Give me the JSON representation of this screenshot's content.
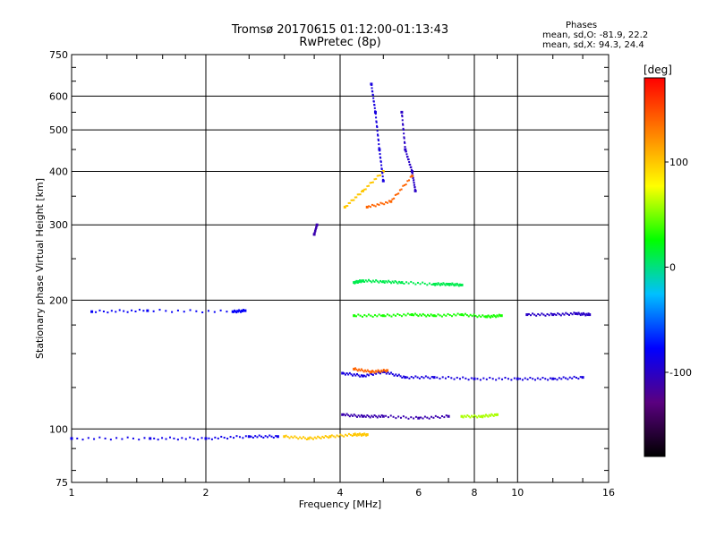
{
  "chart_data": {
    "type": "scatter",
    "title": "Tromsø 20170615 01:12:00-01:13:43",
    "subtitle": "RwPretec (8p)",
    "xlabel": "Frequency [MHz]",
    "ylabel": "Stationary phase Virtual Height [km]",
    "x_scale": "log",
    "y_scale": "log",
    "xlim": [
      1,
      16
    ],
    "ylim": [
      75,
      750
    ],
    "x_ticks": [
      1,
      2,
      4,
      6,
      8,
      10,
      16
    ],
    "x_gridlines": [
      2,
      4,
      8,
      10
    ],
    "y_ticks": [
      75,
      100,
      200,
      300,
      400,
      500,
      600,
      750
    ],
    "y_gridlines": [
      100,
      200,
      300,
      400,
      500,
      600
    ],
    "stats_header": "Phases",
    "stats_lines": [
      "mean, sd,O: -81.9, 22.2",
      "mean, sd,X:  94.3, 24.4"
    ],
    "colorbar": {
      "label": "[deg]",
      "range": [
        -180,
        180
      ],
      "ticks": [
        100,
        0,
        -100
      ],
      "colors": [
        "#000000",
        "#5a0080",
        "#0000ff",
        "#00c0ff",
        "#00ff00",
        "#ffff00",
        "#ff8000",
        "#ff0000"
      ]
    },
    "series": [
      {
        "x": [
          1.0,
          1.5,
          2.0,
          2.5,
          2.9
        ],
        "y": [
          95,
          95,
          95,
          96,
          96
        ],
        "phase": -85
      },
      {
        "x": [
          3.0,
          3.4,
          3.8,
          4.3,
          4.6
        ],
        "y": [
          96,
          95,
          96,
          97,
          97
        ],
        "phase": 100
      },
      {
        "x": [
          1.11,
          1.48,
          2.3,
          2.45
        ],
        "y": [
          188,
          189,
          188,
          189
        ],
        "phase": -80
      },
      {
        "x": [
          4.05,
          4.5,
          5.0,
          6.0,
          7.0
        ],
        "y": [
          108,
          107,
          107,
          106,
          107
        ],
        "phase": -110
      },
      {
        "x": [
          7.5,
          8.3,
          9.0
        ],
        "y": [
          107,
          107,
          108
        ],
        "phase": 60
      },
      {
        "x": [
          4.05,
          4.5,
          5.0,
          5.6,
          6.5,
          8.0,
          10.0,
          12.0,
          14.0
        ],
        "y": [
          135,
          133,
          136,
          132,
          132,
          131,
          131,
          131,
          132
        ],
        "phase": -90
      },
      {
        "x": [
          4.3,
          4.7,
          5.1
        ],
        "y": [
          138,
          136,
          137
        ],
        "phase": 140
      },
      {
        "x": [
          4.3,
          5.0,
          5.8,
          6.5,
          7.5,
          8.5,
          9.2
        ],
        "y": [
          184,
          184,
          185,
          184,
          185,
          183,
          184
        ],
        "phase": 30
      },
      {
        "x": [
          10.5,
          12.0,
          13.5,
          14.5
        ],
        "y": [
          185,
          185,
          186,
          185
        ],
        "phase": -100
      },
      {
        "x": [
          4.3,
          4.5,
          5.0,
          5.5,
          6.5,
          7.0,
          7.5
        ],
        "y": [
          220,
          222,
          221,
          220,
          218,
          218,
          217
        ],
        "phase": 10
      },
      {
        "x": [
          4.1,
          4.5,
          5.0
        ],
        "y": [
          330,
          360,
          400
        ],
        "phase": 100
      },
      {
        "x": [
          4.7,
          4.8,
          4.9,
          5.0
        ],
        "y": [
          640,
          550,
          450,
          380
        ],
        "phase": -90
      },
      {
        "x": [
          5.5,
          5.6,
          5.8,
          5.9
        ],
        "y": [
          550,
          450,
          400,
          360
        ],
        "phase": -100
      },
      {
        "x": [
          4.6,
          5.2,
          5.8
        ],
        "y": [
          330,
          340,
          390
        ],
        "phase": 140
      },
      {
        "x": [
          3.5,
          3.55
        ],
        "y": [
          285,
          300
        ],
        "phase": -110
      }
    ]
  }
}
